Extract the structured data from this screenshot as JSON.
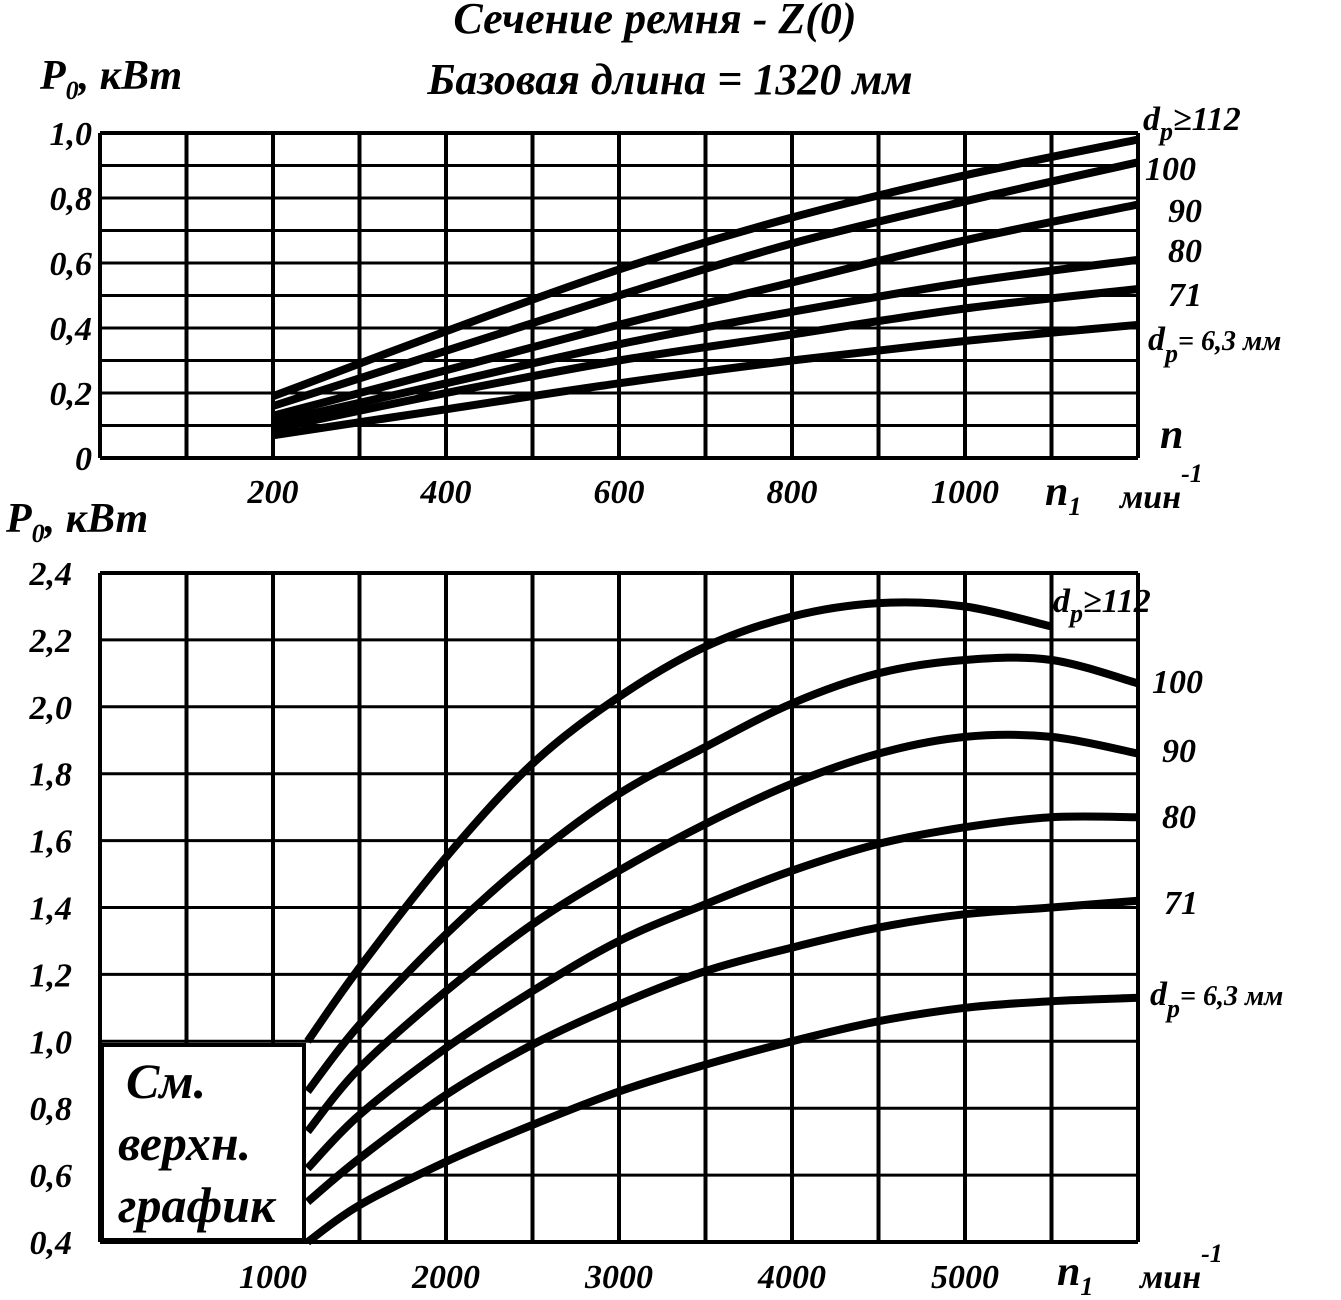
{
  "figure": {
    "title_line1": "Сечение ремня - Z(0)",
    "title_line2": "Базовая длина = 1320 мм"
  },
  "chart_data": [
    {
      "type": "line",
      "ylabel_main": "P",
      "ylabel_sub": "0",
      "ylabel_unit": ", кВт",
      "xlabel_main": "n",
      "xlabel_sub": "1",
      "xlabel_unit": "мин",
      "xlabel_exp": "-1",
      "side_label": "n",
      "xlim": [
        0,
        1200
      ],
      "ylim": [
        0,
        1.0
      ],
      "x_tick_labels": [
        "200",
        "400",
        "600",
        "800",
        "1000"
      ],
      "x_tick_values": [
        200,
        400,
        600,
        800,
        1000
      ],
      "y_tick_labels": [
        "0",
        "0,2",
        "0,4",
        "0,6",
        "0,8",
        "1,0"
      ],
      "y_tick_values": [
        0,
        0.2,
        0.4,
        0.6,
        0.8,
        1.0
      ],
      "grid": true,
      "series": [
        {
          "name": "dp ≥112",
          "label_main": "d",
          "label_sub": "p",
          "label_rest": "≥112",
          "x": [
            200,
            400,
            600,
            800,
            1000,
            1200
          ],
          "y": [
            0.19,
            0.39,
            0.58,
            0.74,
            0.87,
            0.98
          ]
        },
        {
          "name": "100",
          "label_main": "100",
          "label_sub": "",
          "label_rest": "",
          "x": [
            200,
            400,
            600,
            800,
            1000,
            1200
          ],
          "y": [
            0.16,
            0.33,
            0.5,
            0.66,
            0.79,
            0.91
          ]
        },
        {
          "name": "90",
          "label_main": "90",
          "label_sub": "",
          "label_rest": "",
          "x": [
            200,
            400,
            600,
            800,
            1000,
            1200
          ],
          "y": [
            0.13,
            0.27,
            0.41,
            0.54,
            0.67,
            0.78
          ]
        },
        {
          "name": "80",
          "label_main": "80",
          "label_sub": "",
          "label_rest": "",
          "x": [
            200,
            400,
            600,
            800,
            1000,
            1200
          ],
          "y": [
            0.11,
            0.23,
            0.35,
            0.45,
            0.54,
            0.61
          ]
        },
        {
          "name": "71",
          "label_main": "71",
          "label_sub": "",
          "label_rest": "",
          "x": [
            200,
            400,
            600,
            800,
            1000,
            1200
          ],
          "y": [
            0.09,
            0.2,
            0.3,
            0.38,
            0.46,
            0.52
          ]
        },
        {
          "name": "dp = 6,3 мм",
          "label_main": "d",
          "label_sub": "p",
          "label_rest": "= 6,3 мм",
          "x": [
            200,
            400,
            600,
            800,
            1000,
            1200
          ],
          "y": [
            0.07,
            0.15,
            0.23,
            0.3,
            0.36,
            0.41
          ]
        }
      ]
    },
    {
      "type": "line",
      "ylabel_main": "P",
      "ylabel_sub": "0",
      "ylabel_unit": ", кВт",
      "xlabel_main": "n",
      "xlabel_sub": "1",
      "xlabel_unit": "мин",
      "xlabel_exp": "-1",
      "xlim": [
        0,
        6000
      ],
      "ylim": [
        0.4,
        2.4
      ],
      "x_tick_labels": [
        "1000",
        "2000",
        "3000",
        "4000",
        "5000"
      ],
      "x_tick_values": [
        1000,
        2000,
        3000,
        4000,
        5000
      ],
      "y_tick_labels": [
        "0,4",
        "0,6",
        "0,8",
        "1,0",
        "1,2",
        "1,4",
        "1,6",
        "1,8",
        "2,0",
        "2,2",
        "2,4"
      ],
      "y_tick_values": [
        0.4,
        0.6,
        0.8,
        1.0,
        1.2,
        1.4,
        1.6,
        1.8,
        2.0,
        2.2,
        2.4
      ],
      "grid": true,
      "note_lines": [
        "См.",
        "верхн.",
        "график"
      ],
      "series": [
        {
          "name": "dp ≥112",
          "label_main": "d",
          "label_sub": "p",
          "label_rest": "≥112",
          "x": [
            1200,
            1500,
            2000,
            2500,
            3000,
            3500,
            4000,
            4500,
            5000,
            5500
          ],
          "y": [
            1.0,
            1.22,
            1.55,
            1.83,
            2.03,
            2.18,
            2.27,
            2.31,
            2.3,
            2.24
          ]
        },
        {
          "name": "100",
          "label_main": "100",
          "label_sub": "",
          "label_rest": "",
          "x": [
            1200,
            1500,
            2000,
            2500,
            3000,
            3500,
            4000,
            4500,
            5000,
            5500,
            6000
          ],
          "y": [
            0.85,
            1.05,
            1.32,
            1.55,
            1.74,
            1.88,
            2.01,
            2.1,
            2.14,
            2.14,
            2.07
          ]
        },
        {
          "name": "90",
          "label_main": "90",
          "label_sub": "",
          "label_rest": "",
          "x": [
            1200,
            1500,
            2000,
            2500,
            3000,
            3500,
            4000,
            4500,
            5000,
            5500,
            6000
          ],
          "y": [
            0.73,
            0.92,
            1.15,
            1.35,
            1.51,
            1.65,
            1.77,
            1.86,
            1.91,
            1.91,
            1.86
          ]
        },
        {
          "name": "80",
          "label_main": "80",
          "label_sub": "",
          "label_rest": "",
          "x": [
            1200,
            1500,
            2000,
            2500,
            3000,
            3500,
            4000,
            4500,
            5000,
            5500,
            6000
          ],
          "y": [
            0.62,
            0.78,
            0.98,
            1.15,
            1.3,
            1.41,
            1.51,
            1.59,
            1.64,
            1.67,
            1.67
          ]
        },
        {
          "name": "71",
          "label_main": "71",
          "label_sub": "",
          "label_rest": "",
          "x": [
            1200,
            1500,
            2000,
            2500,
            3000,
            3500,
            4000,
            4500,
            5000,
            5500,
            6000
          ],
          "y": [
            0.52,
            0.65,
            0.84,
            0.99,
            1.11,
            1.21,
            1.28,
            1.34,
            1.38,
            1.4,
            1.42
          ]
        },
        {
          "name": "dp = 6,3 мм",
          "label_main": "d",
          "label_sub": "p",
          "label_rest": "= 6,3 мм",
          "x": [
            1200,
            1500,
            2000,
            2500,
            3000,
            3500,
            4000,
            4500,
            5000,
            5500,
            6000
          ],
          "y": [
            0.4,
            0.51,
            0.64,
            0.75,
            0.85,
            0.93,
            1.0,
            1.06,
            1.1,
            1.12,
            1.13
          ]
        }
      ]
    }
  ]
}
